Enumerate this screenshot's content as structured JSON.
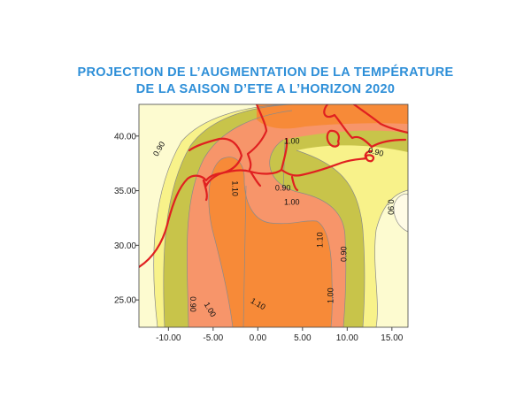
{
  "title": {
    "line1": "PROJECTION  DE  L’AUGMENTATION  DE  LA  TEMPÉRATURE",
    "line2": "DE  LA SAISON D’ETE  A  L’HORIZON  2020"
  },
  "colors": {
    "title": "#2e8fd8",
    "band_below_0_90": "#fdfbd0",
    "band_0_90_near": "#f8f28a",
    "band_0_90_1_00": "#c8c44a",
    "band_1_00_1_10": "#f7956a",
    "band_above_1_10": "#f78a38",
    "borders": "#e02020"
  },
  "chart_data": {
    "type": "contour-map",
    "x_ticks": [
      "-10.00",
      "-5.00",
      "0.00",
      "5.00",
      "10.00",
      "15.00"
    ],
    "y_ticks": [
      "40.00",
      "35.00",
      "30.00",
      "25.00"
    ],
    "xlim": [
      -13.3,
      16.8
    ],
    "ylim": [
      22.5,
      42.9
    ],
    "contour_levels": [
      0.9,
      1.0,
      1.1
    ],
    "contour_labels": [
      {
        "text": "0.90",
        "lon": -11.0,
        "lat": 38.8,
        "rot": -60
      },
      {
        "text": "1.10",
        "lon": -2.6,
        "lat": 35.2,
        "rot": 90
      },
      {
        "text": "1.00",
        "lon": 3.8,
        "lat": 39.5,
        "rot": 0
      },
      {
        "text": "0.90",
        "lon": 2.8,
        "lat": 35.2,
        "rot": 0
      },
      {
        "text": "0.90",
        "lon": 13.2,
        "lat": 38.5,
        "rot": 15
      },
      {
        "text": "1.00",
        "lon": 3.8,
        "lat": 33.9,
        "rot": 0
      },
      {
        "text": "0.90",
        "lon": 14.8,
        "lat": 33.5,
        "rot": 90
      },
      {
        "text": "1.10",
        "lon": 7.0,
        "lat": 30.5,
        "rot": -90
      },
      {
        "text": "0.90",
        "lon": 9.7,
        "lat": 29.2,
        "rot": -90
      },
      {
        "text": "0.90",
        "lon": -7.3,
        "lat": 24.6,
        "rot": 90
      },
      {
        "text": "1.00",
        "lon": -5.4,
        "lat": 24.1,
        "rot": 60
      },
      {
        "text": "1.10",
        "lon": 0.0,
        "lat": 24.6,
        "rot": 30
      },
      {
        "text": "1.00",
        "lon": 8.2,
        "lat": 25.4,
        "rot": -90
      }
    ]
  }
}
